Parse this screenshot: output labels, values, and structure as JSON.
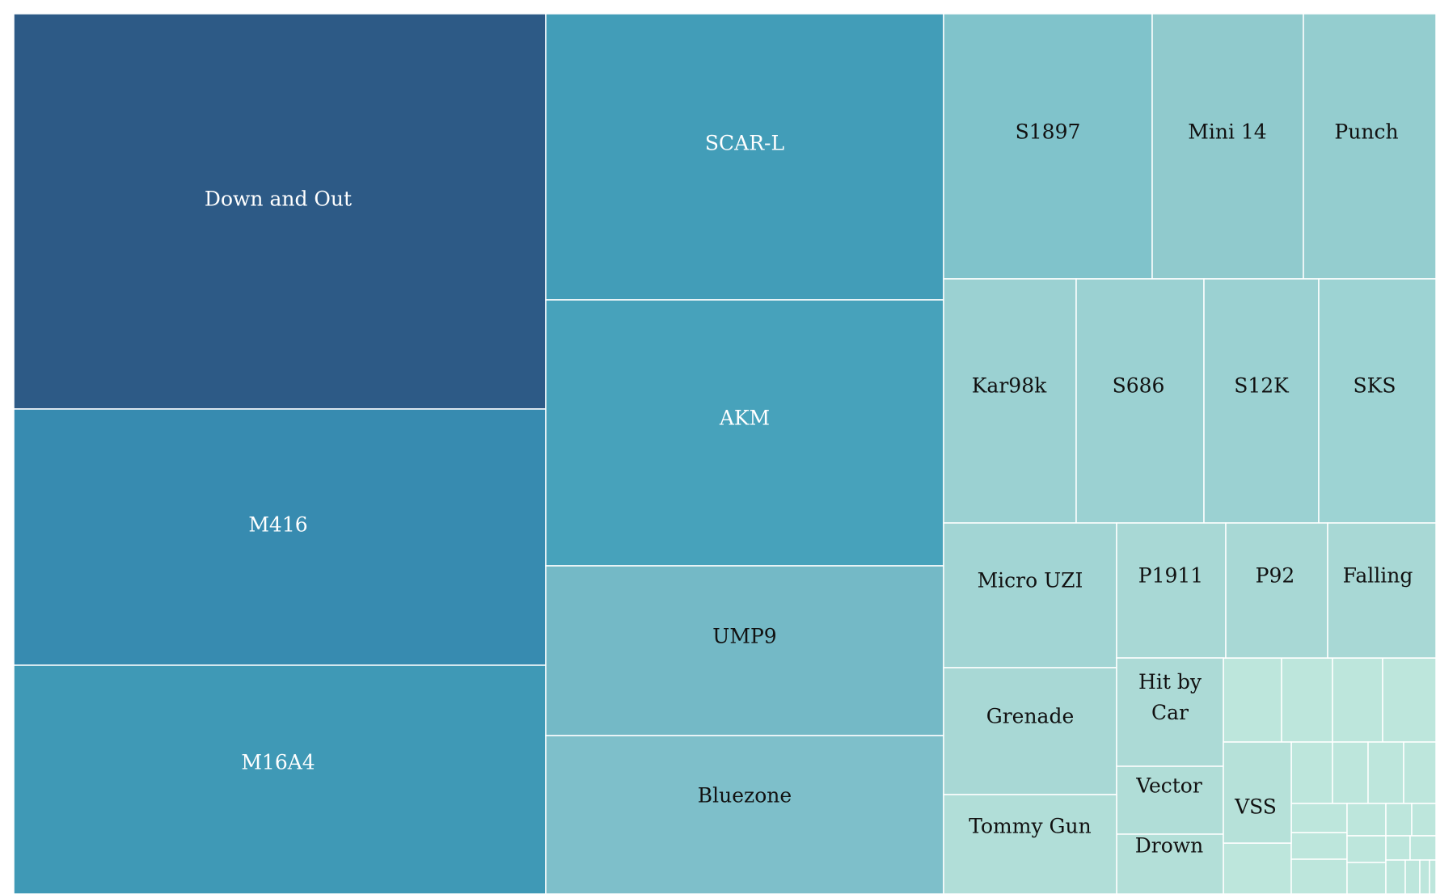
{
  "chart_data": {
    "type": "treemap",
    "title": "",
    "items": [
      {
        "label": "Down and Out",
        "color": "#2d5a86"
      },
      {
        "label": "M416",
        "color": "#378bb0"
      },
      {
        "label": "M16A4",
        "color": "#3f99b6"
      },
      {
        "label": "SCAR-L",
        "color": "#429db8"
      },
      {
        "label": "AKM",
        "color": "#47a2bb"
      },
      {
        "label": "UMP9",
        "color": "#74b9c6"
      },
      {
        "label": "Bluezone",
        "color": "#7ebfca"
      },
      {
        "label": "S1897",
        "color": "#80c3cb"
      },
      {
        "label": "Mini 14",
        "color": "#90cacd"
      },
      {
        "label": "Punch",
        "color": "#94cdcf"
      },
      {
        "label": "Kar98k",
        "color": "#9bd1d2"
      },
      {
        "label": "S686",
        "color": "#9bd1d2"
      },
      {
        "label": "S12K",
        "color": "#9bd1d2"
      },
      {
        "label": "SKS",
        "color": "#9dd3d3"
      },
      {
        "label": "Micro UZI",
        "color": "#a2d5d4"
      },
      {
        "label": "P1911",
        "color": "#a8d8d5"
      },
      {
        "label": "P92",
        "color": "#a8d8d5"
      },
      {
        "label": "Falling",
        "color": "#a8d8d5"
      },
      {
        "label": "Grenade",
        "color": "#a8d8d5"
      },
      {
        "label": "Hit by Car",
        "color": "#acdad6"
      },
      {
        "label": "Vector",
        "color": "#b0ddd7"
      },
      {
        "label": "Drown",
        "color": "#b3dfd8"
      },
      {
        "label": "Tommy Gun",
        "color": "#b1ded8"
      },
      {
        "label": "VSS",
        "color": "#b6e1d9"
      }
    ],
    "unlabeled_color": "#bde6dc"
  }
}
